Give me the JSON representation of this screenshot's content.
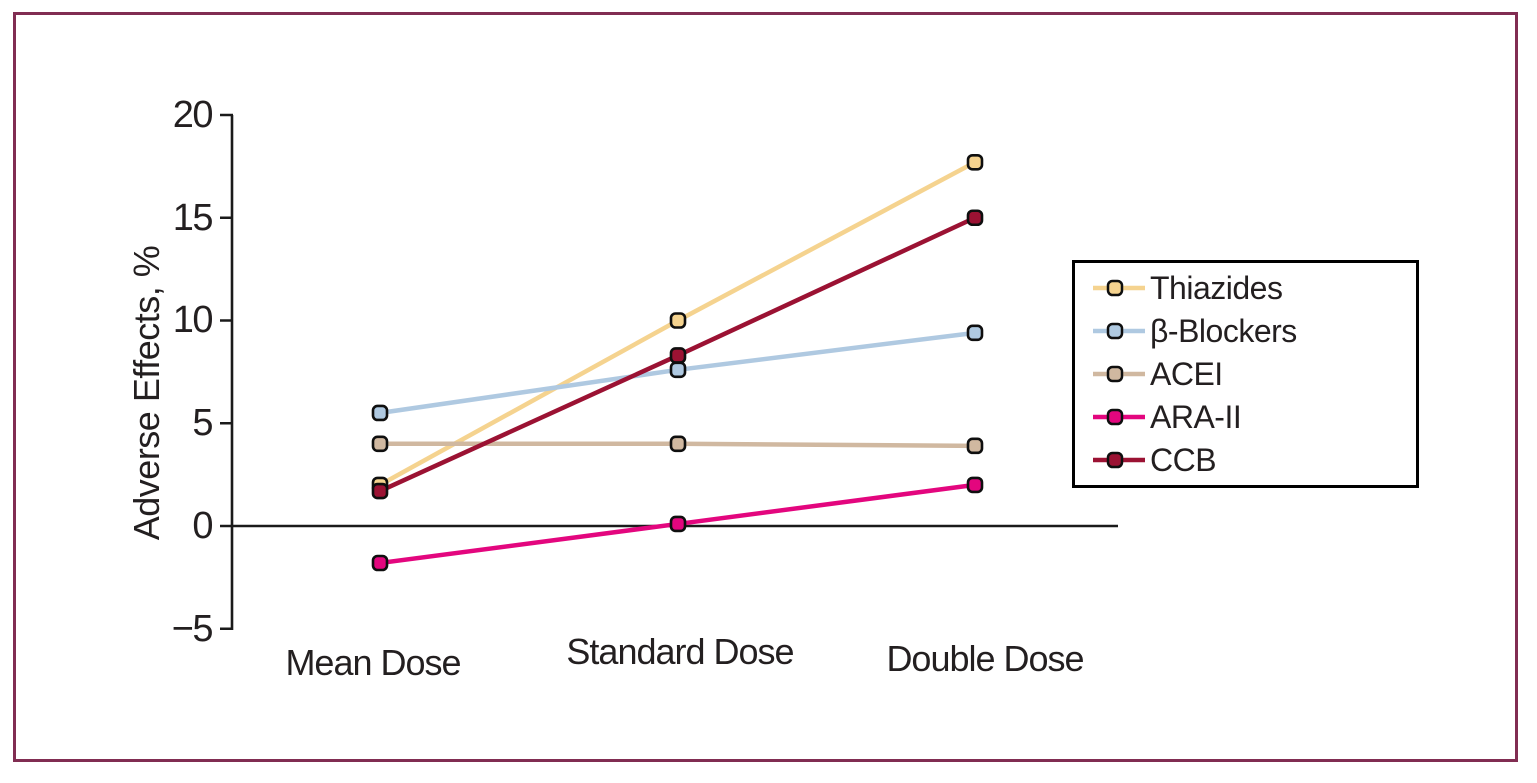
{
  "figure": {
    "frame_border_color": "#812D52",
    "background_color": "#FFFFFF",
    "axis_color": "#1A1A1A",
    "text_color": "#231F20"
  },
  "axis": {
    "ylabel": "Adverse Effects, %",
    "ytick_labels": [
      "20",
      "15",
      "10",
      "5",
      "0",
      "−5"
    ],
    "category_labels": [
      "Mean Dose",
      "Standard Dose",
      "Double Dose"
    ]
  },
  "chart_data": {
    "type": "line",
    "title": "",
    "xlabel": "",
    "ylabel": "Adverse Effects, %",
    "categories": [
      "Mean Dose",
      "Standard Dose",
      "Double Dose"
    ],
    "yticks": [
      20,
      15,
      10,
      5,
      0,
      -5
    ],
    "ylim": [
      -5,
      20
    ],
    "grid": false,
    "baseline": 0,
    "legend_position": "right",
    "series": [
      {
        "name": "Thiazides",
        "color": "#F5D38F",
        "values": [
          2.0,
          10.0,
          17.7
        ]
      },
      {
        "name": "β-Blockers",
        "color": "#AFC9E1",
        "values": [
          5.5,
          7.6,
          9.4
        ]
      },
      {
        "name": "ACEI",
        "color": "#D0B8A0",
        "values": [
          4.0,
          4.0,
          3.9
        ]
      },
      {
        "name": "ARA-II",
        "color": "#E3067E",
        "values": [
          -1.8,
          0.1,
          2.0
        ]
      },
      {
        "name": "CCB",
        "color": "#9B1233",
        "values": [
          1.7,
          8.3,
          15.0
        ]
      }
    ]
  }
}
